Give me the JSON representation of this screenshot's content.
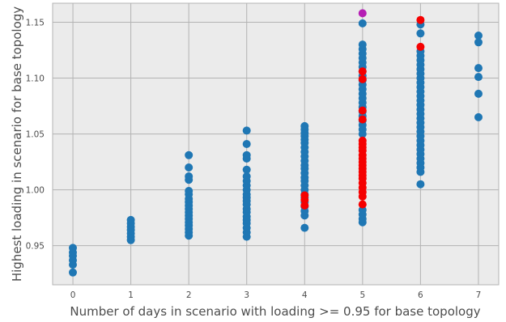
{
  "chart_data": {
    "type": "scatter",
    "title": "",
    "xlabel": "Number of days in scenario with loading >= 0.95 for base topology",
    "ylabel": "Highest loading in scenario for base topology",
    "xlim": [
      -0.35,
      7.35
    ],
    "ylim": [
      0.915,
      1.167
    ],
    "grid": true,
    "xticks": [
      0,
      1,
      2,
      3,
      4,
      5,
      6,
      7
    ],
    "yticks": [
      0.95,
      1.0,
      1.05,
      1.1,
      1.15
    ],
    "xtick_labels": [
      "0",
      "1",
      "2",
      "3",
      "4",
      "5",
      "6",
      "7"
    ],
    "ytick_labels": [
      "0.95",
      "1.00",
      "1.05",
      "1.10",
      "1.15"
    ],
    "colors": {
      "background": "#ebebeb",
      "grid": "#b3b3b3",
      "blue": "#1f77b4",
      "red": "#f50000",
      "magenta": "#b51fb4"
    },
    "series": [
      {
        "color": "#1f77b4",
        "points": [
          [
            0,
            0.926
          ],
          [
            0,
            0.933
          ],
          [
            0,
            0.937
          ],
          [
            0,
            0.941
          ],
          [
            0,
            0.944
          ],
          [
            0,
            0.948
          ],
          [
            1,
            0.955
          ],
          [
            1,
            0.958
          ],
          [
            1,
            0.961
          ],
          [
            1,
            0.964
          ],
          [
            1,
            0.967
          ],
          [
            1,
            0.97
          ],
          [
            1,
            0.973
          ],
          [
            2,
            0.959
          ],
          [
            2,
            0.962
          ],
          [
            2,
            0.965
          ],
          [
            2,
            0.968
          ],
          [
            2,
            0.971
          ],
          [
            2,
            0.974
          ],
          [
            2,
            0.977
          ],
          [
            2,
            0.98
          ],
          [
            2,
            0.983
          ],
          [
            2,
            0.986
          ],
          [
            2,
            0.989
          ],
          [
            2,
            0.992
          ],
          [
            2,
            0.996
          ],
          [
            2,
            0.999
          ],
          [
            2,
            1.009
          ],
          [
            2,
            1.012
          ],
          [
            2,
            1.02
          ],
          [
            2,
            1.031
          ],
          [
            3,
            0.958
          ],
          [
            3,
            0.962
          ],
          [
            3,
            0.966
          ],
          [
            3,
            0.97
          ],
          [
            3,
            0.973
          ],
          [
            3,
            0.976
          ],
          [
            3,
            0.98
          ],
          [
            3,
            0.983
          ],
          [
            3,
            0.987
          ],
          [
            3,
            0.99
          ],
          [
            3,
            0.993
          ],
          [
            3,
            0.996
          ],
          [
            3,
            1.0
          ],
          [
            3,
            1.004
          ],
          [
            3,
            1.008
          ],
          [
            3,
            1.012
          ],
          [
            3,
            1.018
          ],
          [
            3,
            1.028
          ],
          [
            3,
            1.031
          ],
          [
            3,
            1.041
          ],
          [
            3,
            1.053
          ],
          [
            4,
            0.966
          ],
          [
            4,
            0.977
          ],
          [
            4,
            0.981
          ],
          [
            4,
            0.985
          ],
          [
            4,
            0.989
          ],
          [
            4,
            0.993
          ],
          [
            4,
            0.996
          ],
          [
            4,
            1.0
          ],
          [
            4,
            1.004
          ],
          [
            4,
            1.008
          ],
          [
            4,
            1.011
          ],
          [
            4,
            1.015
          ],
          [
            4,
            1.019
          ],
          [
            4,
            1.022
          ],
          [
            4,
            1.026
          ],
          [
            4,
            1.03
          ],
          [
            4,
            1.034
          ],
          [
            4,
            1.038
          ],
          [
            4,
            1.042
          ],
          [
            4,
            1.045
          ],
          [
            4,
            1.048
          ],
          [
            4,
            1.051
          ],
          [
            4,
            1.054
          ],
          [
            4,
            1.057
          ],
          [
            5,
            0.971
          ],
          [
            5,
            0.974
          ],
          [
            5,
            0.978
          ],
          [
            5,
            0.982
          ],
          [
            5,
            1.05
          ],
          [
            5,
            1.054
          ],
          [
            5,
            1.058
          ],
          [
            5,
            1.062
          ],
          [
            5,
            1.066
          ],
          [
            5,
            1.07
          ],
          [
            5,
            1.074
          ],
          [
            5,
            1.078
          ],
          [
            5,
            1.082
          ],
          [
            5,
            1.086
          ],
          [
            5,
            1.09
          ],
          [
            5,
            1.094
          ],
          [
            5,
            1.098
          ],
          [
            5,
            1.102
          ],
          [
            5,
            1.106
          ],
          [
            5,
            1.11
          ],
          [
            5,
            1.114
          ],
          [
            5,
            1.118
          ],
          [
            5,
            1.122
          ],
          [
            5,
            1.126
          ],
          [
            5,
            1.13
          ],
          [
            5,
            1.149
          ],
          [
            6,
            1.005
          ],
          [
            6,
            1.016
          ],
          [
            6,
            1.02
          ],
          [
            6,
            1.024
          ],
          [
            6,
            1.028
          ],
          [
            6,
            1.032
          ],
          [
            6,
            1.036
          ],
          [
            6,
            1.04
          ],
          [
            6,
            1.044
          ],
          [
            6,
            1.048
          ],
          [
            6,
            1.052
          ],
          [
            6,
            1.056
          ],
          [
            6,
            1.06
          ],
          [
            6,
            1.064
          ],
          [
            6,
            1.068
          ],
          [
            6,
            1.072
          ],
          [
            6,
            1.076
          ],
          [
            6,
            1.08
          ],
          [
            6,
            1.084
          ],
          [
            6,
            1.088
          ],
          [
            6,
            1.092
          ],
          [
            6,
            1.096
          ],
          [
            6,
            1.1
          ],
          [
            6,
            1.104
          ],
          [
            6,
            1.108
          ],
          [
            6,
            1.112
          ],
          [
            6,
            1.116
          ],
          [
            6,
            1.12
          ],
          [
            6,
            1.124
          ],
          [
            6,
            1.14
          ],
          [
            6,
            1.148
          ],
          [
            7,
            1.065
          ],
          [
            7,
            1.086
          ],
          [
            7,
            1.101
          ],
          [
            7,
            1.109
          ],
          [
            7,
            1.132
          ],
          [
            7,
            1.138
          ]
        ]
      },
      {
        "color": "#f50000",
        "points": [
          [
            4,
            0.986
          ],
          [
            4,
            0.991
          ],
          [
            4,
            0.995
          ],
          [
            5,
            0.987
          ],
          [
            5,
            0.994
          ],
          [
            5,
            0.998
          ],
          [
            5,
            1.002
          ],
          [
            5,
            1.006
          ],
          [
            5,
            1.01
          ],
          [
            5,
            1.013
          ],
          [
            5,
            1.016
          ],
          [
            5,
            1.019
          ],
          [
            5,
            1.022
          ],
          [
            5,
            1.025
          ],
          [
            5,
            1.028
          ],
          [
            5,
            1.031
          ],
          [
            5,
            1.035
          ],
          [
            5,
            1.038
          ],
          [
            5,
            1.041
          ],
          [
            5,
            1.044
          ],
          [
            5,
            1.063
          ],
          [
            5,
            1.071
          ],
          [
            5,
            1.099
          ],
          [
            5,
            1.106
          ],
          [
            6,
            1.128
          ],
          [
            6,
            1.152
          ]
        ]
      },
      {
        "color": "#b51fb4",
        "points": [
          [
            5,
            1.158
          ]
        ]
      }
    ]
  }
}
